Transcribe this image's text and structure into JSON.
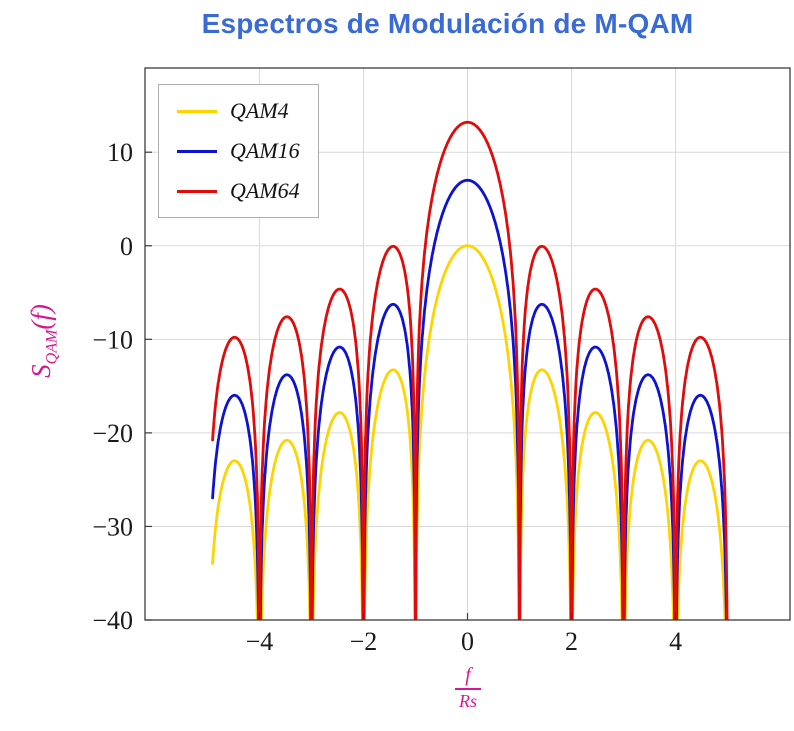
{
  "page": {
    "background": "#ffffff"
  },
  "chart_data": {
    "type": "line",
    "title": "Espectros de Modulación de M-QAM",
    "title_color": "#3a6bd5",
    "axis_label_color": "#d6188f",
    "tick_label_color": "#1b1b1b",
    "grid_color": "#d9d9d9",
    "box_color": "#3c3c3c",
    "ylabel": {
      "base": "S",
      "sub": "QAM",
      "arg": "(f)"
    },
    "xlabel": {
      "numerator": "f",
      "denominator": "Rs"
    },
    "xlim": [
      -6.2,
      6.2
    ],
    "ylim": [
      -40,
      19
    ],
    "x_ticks": {
      "values": [
        -4,
        -2,
        0,
        2,
        4
      ],
      "labels": [
        "−4",
        "−2",
        "0",
        "2",
        "4"
      ]
    },
    "y_ticks": {
      "values": [
        10,
        0,
        -10,
        -20,
        -30,
        -40
      ],
      "labels": [
        "10",
        "0",
        "−10",
        "−20",
        "−30",
        "−40"
      ]
    },
    "grid": true,
    "legend_position": "top-left",
    "formula": "S_M(f) = offset_db + 10*log10(sinc^2(f/Rs))",
    "f_range": [
      -4.9,
      5.0
    ],
    "clip_floor_db": -40,
    "nulls_at_f": [
      -4,
      -3,
      -2,
      -1,
      1,
      2,
      3,
      4
    ],
    "series": [
      {
        "name": "QAM4",
        "color": "#fdd400",
        "offset_db": 0,
        "peaks": [
          [
            0,
            0
          ],
          [
            1.43,
            -13.3
          ],
          [
            2.46,
            -17.8
          ],
          [
            3.47,
            -20.8
          ],
          [
            4.48,
            -23.6
          ]
        ]
      },
      {
        "name": "QAM16",
        "color": "#0d13cf",
        "offset_db": 7,
        "peaks": [
          [
            0,
            7
          ],
          [
            1.43,
            -6.3
          ],
          [
            2.46,
            -10.8
          ],
          [
            3.47,
            -13.8
          ],
          [
            4.48,
            -16.6
          ]
        ]
      },
      {
        "name": "QAM64",
        "color": "#e00b0b",
        "offset_db": 13.2,
        "peaks": [
          [
            0,
            13.2
          ],
          [
            1.43,
            -0.1
          ],
          [
            2.46,
            -4.6
          ],
          [
            3.47,
            -7.6
          ],
          [
            4.48,
            -10.4
          ]
        ]
      }
    ]
  }
}
